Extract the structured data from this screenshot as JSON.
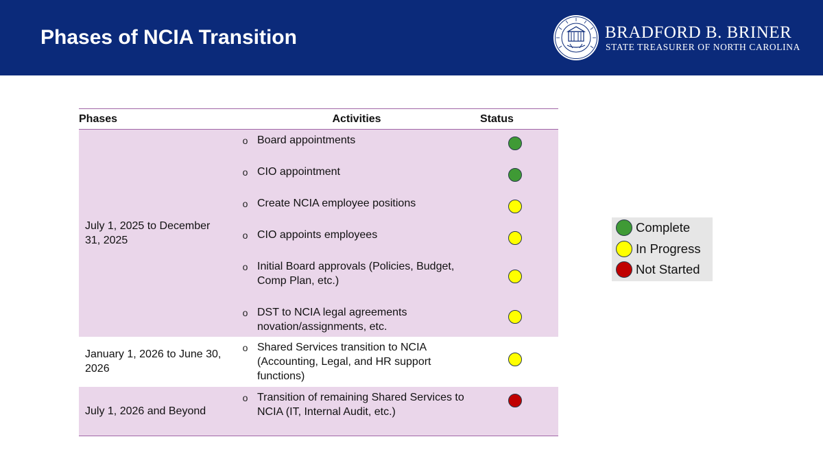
{
  "header": {
    "title": "Phases of NCIA Transition",
    "brand_name": "BRADFORD B. BRINER",
    "brand_subtitle": "STATE TREASURER OF NORTH CAROLINA",
    "seal_text": "NORTH CAROLINA DEPARTMENT OF STATE TREASURER"
  },
  "colors": {
    "header_bg": "#0b2a7a",
    "complete": "#3f9a35",
    "in_progress": "#ffff00",
    "not_started": "#c00000",
    "row_shade": "#ead6ea",
    "rule": "#a065a6"
  },
  "table": {
    "headers": {
      "phases": "Phases",
      "activities": "Activities",
      "status": "Status"
    },
    "bullet": "o",
    "phases": [
      {
        "label": "July 1, 2025 to December 31, 2025",
        "activities": [
          {
            "text": "Board appointments",
            "status": "Complete"
          },
          {
            "text": "CIO appointment",
            "status": "Complete"
          },
          {
            "text": "Create NCIA employee positions",
            "status": "In Progress"
          },
          {
            "text": "CIO appoints employees",
            "status": "In Progress"
          },
          {
            "text": "Initial Board approvals (Policies, Budget, Comp Plan, etc.)",
            "status": "In Progress"
          },
          {
            "text": "DST to NCIA legal agreements novation/assignments, etc.",
            "status": "In Progress"
          }
        ]
      },
      {
        "label": "January 1, 2026 to June 30, 2026",
        "activities": [
          {
            "text": "Shared Services transition to NCIA (Accounting, Legal, and HR support functions)",
            "status": "In Progress"
          }
        ]
      },
      {
        "label": "July 1, 2026 and Beyond",
        "activities": [
          {
            "text": "Transition of remaining Shared Services to NCIA (IT, Internal Audit, etc.)",
            "status": "Not Started"
          }
        ]
      }
    ]
  },
  "legend": {
    "items": [
      {
        "label": "Complete",
        "color": "#3f9a35"
      },
      {
        "label": "In Progress",
        "color": "#ffff00"
      },
      {
        "label": "Not Started",
        "color": "#c00000"
      }
    ]
  }
}
